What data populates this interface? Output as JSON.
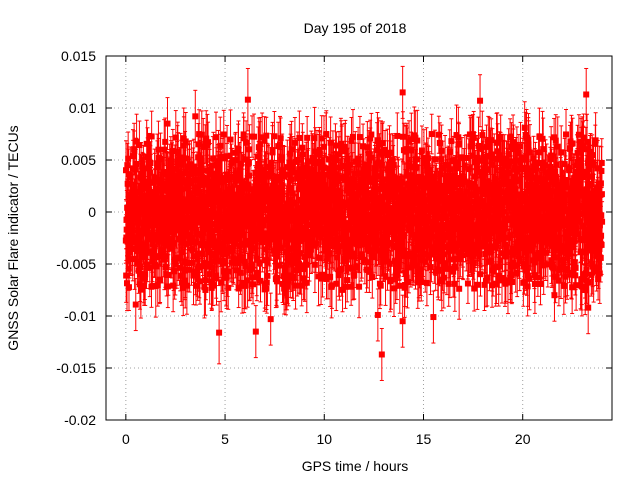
{
  "chart_data": {
    "type": "scatter",
    "title": "Day 195 of 2018",
    "xlabel": "GPS time / hours",
    "ylabel": "GNSS Solar Flare indicator / TECUs",
    "xlim": [
      -1,
      24.5
    ],
    "ylim": [
      -0.02,
      0.015
    ],
    "x_ticks": [
      0,
      5,
      10,
      15,
      20
    ],
    "x_tick_labels": [
      "0",
      "5",
      "10",
      "15",
      "20"
    ],
    "y_ticks": [
      -0.02,
      -0.015,
      -0.01,
      -0.005,
      0,
      0.005,
      0.01,
      0.015
    ],
    "y_tick_labels": [
      "-0.02",
      "-0.015",
      "-0.01",
      "-0.005",
      "0",
      "0.005",
      "0.01",
      "0.015"
    ],
    "grid": true,
    "legend": "none",
    "series": [
      {
        "name": "GNSS Solar Flare indicator",
        "color": "#ff0000",
        "marker": "square",
        "error_bars": true,
        "x_start": 0,
        "x_end": 24,
        "n_points": 2880,
        "typical_range": [
          -0.0075,
          0.0075
        ],
        "typical_error": 0.0025,
        "notable_points": [
          {
            "x": 6.15,
            "y": 0.0108,
            "err": 0.003
          },
          {
            "x": 12.9,
            "y": -0.0137,
            "err": 0.0025
          },
          {
            "x": 13.95,
            "y": 0.0115,
            "err": 0.0025
          },
          {
            "x": 17.85,
            "y": 0.0107,
            "err": 0.0025
          },
          {
            "x": 23.2,
            "y": 0.0113,
            "err": 0.0025
          },
          {
            "x": 4.7,
            "y": -0.0116,
            "err": 0.003
          },
          {
            "x": 6.55,
            "y": -0.0115,
            "err": 0.0025
          },
          {
            "x": 7.3,
            "y": -0.0103,
            "err": 0.0025
          },
          {
            "x": 12.7,
            "y": -0.0099,
            "err": 0.0025
          },
          {
            "x": 13.95,
            "y": -0.0105,
            "err": 0.0025
          },
          {
            "x": 15.5,
            "y": -0.0101,
            "err": 0.0025
          },
          {
            "x": 0.5,
            "y": -0.0089,
            "err": 0.0025
          },
          {
            "x": 23.3,
            "y": -0.0092,
            "err": 0.0025
          },
          {
            "x": 3.5,
            "y": 0.0092,
            "err": 0.0025
          },
          {
            "x": 2.1,
            "y": 0.0085,
            "err": 0.0025
          },
          {
            "x": 20.1,
            "y": 0.0081,
            "err": 0.0025
          },
          {
            "x": 21.6,
            "y": -0.008,
            "err": 0.0025
          }
        ]
      }
    ]
  }
}
